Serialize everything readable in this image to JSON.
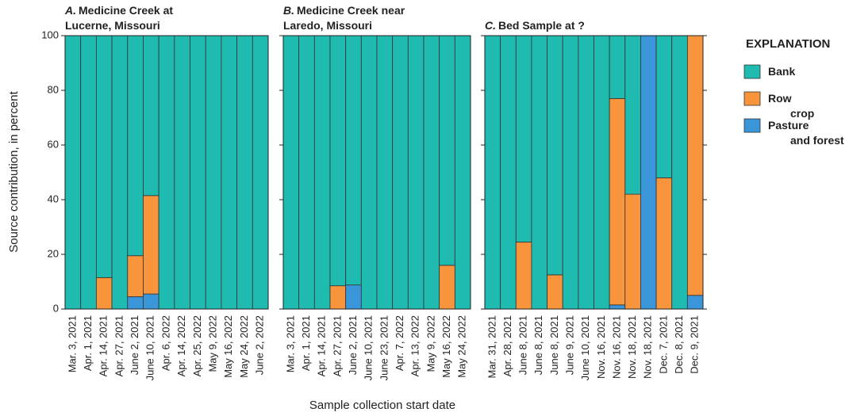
{
  "y_label": "Source contribution, in percent",
  "x_label": "Sample collection start date",
  "legend_title": "EXPLANATION",
  "chart_data": [
    {
      "type": "bar",
      "stacked": true,
      "panel_label": "A.",
      "title_lines": [
        "Medicine Creek at",
        "Lucerne, Missouri"
      ],
      "categories": [
        "Mar. 3, 2021",
        "Apr. 1, 2021",
        "Apr. 14, 2021",
        "Apr. 27, 2021",
        "June 2, 2021",
        "June 10, 2021",
        "Apr. 6, 2022",
        "Apr. 14, 2022",
        "Apr. 25, 2022",
        "May 9, 2022",
        "May 16, 2022",
        "May 24, 2022",
        "June 2, 2022"
      ],
      "series": [
        {
          "name": "Bank",
          "color": "#1fbab0",
          "values": [
            100,
            100,
            88.5,
            100,
            80.5,
            58.5,
            100,
            100,
            100,
            100,
            100,
            100,
            100
          ]
        },
        {
          "name": "Row crop",
          "color": "#f7943c",
          "values": [
            0,
            0,
            11.5,
            0,
            15,
            36,
            0,
            0,
            0,
            0,
            0,
            0,
            0
          ]
        },
        {
          "name": "Pasture and forest",
          "color": "#3a96d8",
          "values": [
            0,
            0,
            0,
            0,
            4.5,
            5.5,
            0,
            0,
            0,
            0,
            0,
            0,
            0
          ]
        }
      ],
      "ylim": [
        0,
        100
      ],
      "yticks": [
        0,
        20,
        40,
        60,
        80,
        100
      ]
    },
    {
      "type": "bar",
      "stacked": true,
      "panel_label": "B.",
      "title_lines": [
        "Medicine Creek near",
        "Laredo, Missouri"
      ],
      "categories": [
        "Mar. 3, 2021",
        "Apr. 1, 2021",
        "Apr. 14, 2021",
        "Apr. 27, 2021",
        "June 2, 2021",
        "June 10, 2021",
        "June 23, 2021",
        "Apr. 7, 2022",
        "Apr. 13, 2022",
        "May 9, 2022",
        "May 16, 2022",
        "May 24, 2022"
      ],
      "series": [
        {
          "color": "#1fbab0",
          "values": [
            100,
            100,
            100,
            91.5,
            91.2,
            100,
            100,
            100,
            100,
            100,
            84,
            100
          ]
        },
        {
          "color": "#f7943c",
          "values": [
            0,
            0,
            0,
            8.5,
            0,
            0,
            0,
            0,
            0,
            0,
            16,
            0
          ]
        },
        {
          "color": "#3a96d8",
          "values": [
            0,
            0,
            0,
            0,
            8.8,
            0,
            0,
            0,
            0,
            0,
            0,
            0
          ]
        }
      ],
      "ylim": [
        0,
        100
      ],
      "yticks": [
        0,
        20,
        40,
        60,
        80,
        100
      ]
    },
    {
      "type": "bar",
      "stacked": true,
      "panel_label": "C.",
      "title_lines": [
        "Bed Sample at ?"
      ],
      "categories": [
        "Mar. 31, 2021",
        "Apr. 28, 2021",
        "June 8, 2021",
        "June 8, 2021",
        "June 8, 2021",
        "June 9, 2021",
        "June 10, 2021",
        "Nov. 16, 2021",
        "Nov. 16, 2021",
        "Nov. 18, 2021",
        "Nov. 18, 2021",
        "Dec. 7, 2021",
        "Dec. 8, 2021",
        "Dec. 9, 2021"
      ],
      "series": [
        {
          "color": "#1fbab0",
          "values": [
            100,
            100,
            75.5,
            100,
            87.5,
            100,
            100,
            100,
            23,
            58,
            0,
            52,
            100,
            0
          ]
        },
        {
          "color": "#f7943c",
          "values": [
            0,
            0,
            24.5,
            0,
            12.5,
            0,
            0,
            0,
            75.5,
            42,
            0,
            48,
            0,
            95
          ]
        },
        {
          "color": "#3a96d8",
          "values": [
            0,
            0,
            0,
            0,
            0,
            0,
            0,
            0,
            1.5,
            0,
            100,
            0,
            0,
            5
          ]
        }
      ],
      "ylim": [
        0,
        100
      ],
      "yticks": [
        0,
        20,
        40,
        60,
        80,
        100
      ]
    }
  ]
}
